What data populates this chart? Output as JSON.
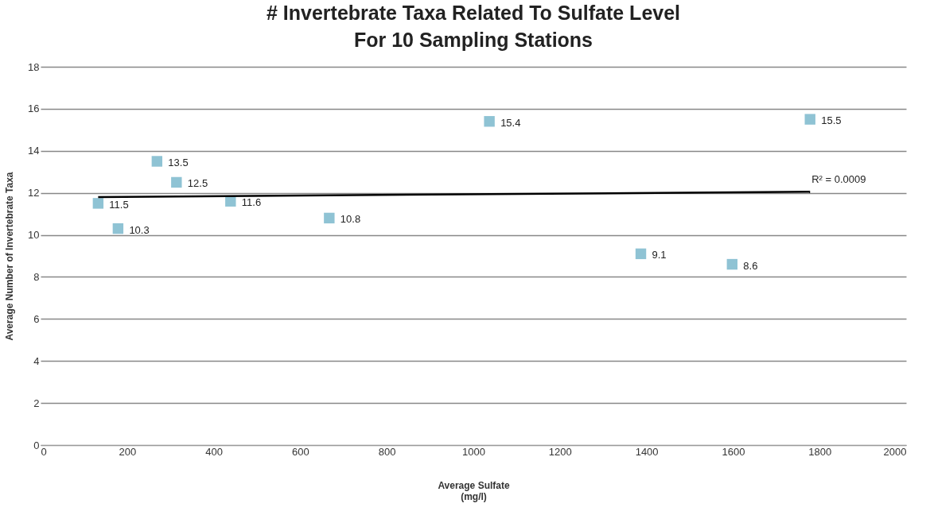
{
  "chart_data": {
    "type": "scatter",
    "title": [
      "# Invertebrate Taxa Related To Sulfate Level",
      "For 10 Sampling Stations"
    ],
    "xlabel": [
      "Average Sulfate",
      "(mg/l)"
    ],
    "ylabel": "Average Number of Invertebrate Taxa",
    "xlim": [
      0,
      2000
    ],
    "xticks": [
      0,
      200,
      400,
      600,
      800,
      1000,
      1200,
      1400,
      1600,
      1800,
      2000
    ],
    "ylim": [
      0,
      18
    ],
    "yticks": [
      0,
      2,
      4,
      6,
      8,
      10,
      12,
      14,
      16,
      18
    ],
    "grid": "y",
    "series": [
      {
        "type": "scatter",
        "marker": "square",
        "color": "#8fc3d4",
        "x": [
          133,
          179,
          269,
          314,
          439,
          667,
          1037,
          1387,
          1598,
          1778
        ],
        "values": [
          11.5,
          10.3,
          13.5,
          12.5,
          11.6,
          10.8,
          15.4,
          9.1,
          8.6,
          15.5
        ],
        "value_labels": [
          "11.5",
          "10.3",
          "13.5",
          "12.5",
          "11.6",
          "10.8",
          "15.4",
          "9.1",
          "8.6",
          "15.5"
        ]
      },
      {
        "type": "line",
        "color": "#000000",
        "x": [
          133,
          1778
        ],
        "values": [
          11.8,
          12.05
        ]
      }
    ],
    "annotations": [
      "R² = 0.0009"
    ]
  }
}
